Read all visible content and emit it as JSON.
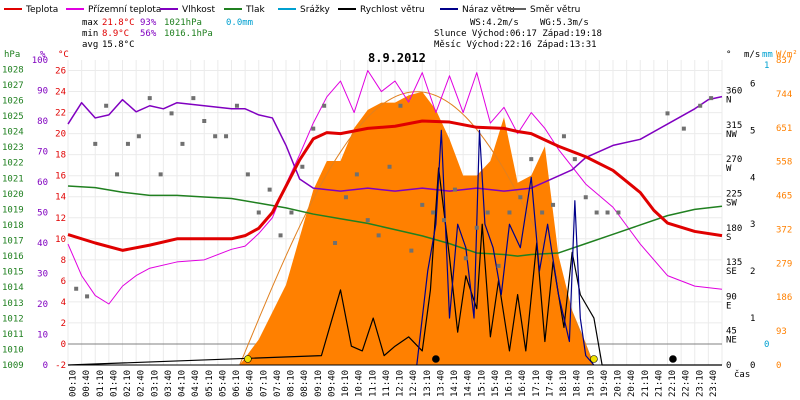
{
  "chart_data": {
    "type": "line",
    "title": "8.9.2012",
    "legend": [
      {
        "key": "teplota",
        "label": "Teplota",
        "color": "#e00000"
      },
      {
        "key": "pocit",
        "label": "Přízemní teplota",
        "color": "#e000e0"
      },
      {
        "key": "vlhkost",
        "label": "Vlhkost",
        "color": "#8000c0"
      },
      {
        "key": "tlak",
        "label": "Tlak",
        "color": "#208020"
      },
      {
        "key": "srazky",
        "label": "Srážky",
        "color": "#00a0d0"
      },
      {
        "key": "rychlost",
        "label": "Rychlost větru",
        "color": "#000000"
      },
      {
        "key": "naraz",
        "label": "Náraz větru",
        "color": "#00008a"
      },
      {
        "key": "smer",
        "label": "Směr větru",
        "color": "#606060"
      }
    ],
    "stats": {
      "max_label": "max",
      "max_temp": "21.8°C",
      "max_hum": "93%",
      "max_press": "1021hPa",
      "max_rain": "0.0mm",
      "min_label": "min",
      "min_temp": "8.9°C",
      "min_hum": "56%",
      "min_press": "1016.1hPa",
      "avg_label": "avg",
      "avg_temp": "15.8°C",
      "ws": "WS:4.2m/s",
      "wg": "WG:5.3m/s",
      "sun": "Slunce Východ:06:17  Západ:19:18",
      "moon": "Měsíc  Východ:22:16  Západ:13:31"
    },
    "axes": {
      "hpa_unit": "hPa",
      "pct_unit": "%",
      "c_unit": "°C",
      "deg_unit": "°",
      "ms_unit": "m/s",
      "mm_unit": "mm",
      "wm2_unit": "W/m²",
      "x_unit": "čas",
      "hpa_ticks": [
        "1028",
        "1027",
        "1026",
        "1025",
        "1024",
        "1023",
        "1022",
        "1021",
        "1020",
        "1019",
        "1018",
        "1017",
        "1016",
        "1015",
        "1014",
        "1013",
        "1012",
        "1011",
        "1010",
        "1009"
      ],
      "pct_ticks": [
        "100",
        "90",
        "80",
        "70",
        "60",
        "50",
        "40",
        "30",
        "20",
        "10",
        "0"
      ],
      "c_ticks": [
        "26",
        "24",
        "22",
        "20",
        "18",
        "16",
        "14",
        "12",
        "10",
        "8",
        "6",
        "4",
        "2",
        "0",
        "-2"
      ],
      "dir_ticks": [
        [
          "360",
          "N"
        ],
        [
          "315",
          "NW"
        ],
        [
          "270",
          "W"
        ],
        [
          "225",
          "SW"
        ],
        [
          "180",
          "S"
        ],
        [
          "135",
          "SE"
        ],
        [
          "90",
          "E"
        ],
        [
          "45",
          "NE"
        ],
        [
          "0",
          ""
        ]
      ],
      "ms_ticks": [
        "6",
        "5",
        "4",
        "3",
        "2",
        "1",
        "0"
      ],
      "mm_ticks": [
        "1",
        "0"
      ],
      "rad_ticks": [
        "837",
        "744",
        "651",
        "558",
        "465",
        "372",
        "279",
        "186",
        "93",
        "0"
      ],
      "x_ticks": [
        "00:10",
        "00:40",
        "01:10",
        "01:40",
        "02:10",
        "02:40",
        "03:10",
        "03:40",
        "04:10",
        "04:40",
        "05:10",
        "05:40",
        "06:10",
        "06:40",
        "07:10",
        "07:40",
        "08:10",
        "08:40",
        "09:10",
        "09:40",
        "10:10",
        "10:40",
        "11:10",
        "11:40",
        "12:10",
        "12:40",
        "13:10",
        "13:40",
        "14:10",
        "14:40",
        "15:10",
        "15:40",
        "16:10",
        "16:40",
        "17:10",
        "17:40",
        "18:10",
        "18:40",
        "19:10",
        "19:40",
        "20:10",
        "20:40",
        "21:10",
        "21:40",
        "22:10",
        "22:40",
        "23:10",
        "23:40"
      ],
      "temp_range": [
        -2,
        27
      ],
      "hum_range": [
        0,
        100
      ],
      "press_range": [
        1009,
        1028.6
      ],
      "wind_range": [
        0,
        6.5
      ],
      "rad_range": [
        0,
        837
      ]
    },
    "series": {
      "teplota": {
        "h": [
          0,
          1,
          2,
          3,
          4,
          5,
          6,
          6.5,
          7,
          7.5,
          8,
          8.5,
          9,
          9.5,
          10,
          11,
          12,
          13,
          14,
          15,
          16,
          16.5,
          17,
          18,
          19,
          20,
          21,
          21.5,
          22,
          23,
          24
        ],
        "v": [
          10.4,
          9.6,
          8.9,
          9.4,
          10,
          10,
          10,
          10.3,
          11,
          12.5,
          15,
          17.5,
          19.5,
          20.1,
          20,
          20.5,
          20.7,
          21.2,
          21.1,
          20.6,
          20.5,
          20.2,
          20,
          18.8,
          17.8,
          16.5,
          14.4,
          12.7,
          11.5,
          10.7,
          10.3
        ]
      },
      "pocit": {
        "h": [
          0,
          0.5,
          1,
          1.5,
          2,
          2.5,
          3,
          4,
          5,
          6,
          6.5,
          7,
          7.5,
          8,
          8.5,
          9,
          9.5,
          10,
          10.5,
          11,
          11.5,
          12,
          12.5,
          13,
          13.5,
          14,
          14.5,
          15,
          15.5,
          16,
          16.5,
          17,
          17.5,
          18,
          19,
          20,
          21,
          22,
          23,
          24
        ],
        "v": [
          9.5,
          6.5,
          4.6,
          3.8,
          5.5,
          6.5,
          7.2,
          7.8,
          8,
          9,
          9.3,
          10.5,
          12,
          15.2,
          18,
          21,
          23.5,
          25,
          22,
          26,
          24,
          25,
          23,
          25.8,
          22,
          25.5,
          22,
          25.8,
          21,
          22.5,
          20,
          22,
          20.5,
          18.5,
          15.2,
          13,
          9.5,
          6.5,
          5.5,
          5.2
        ]
      },
      "vlhkost": {
        "h": [
          0,
          0.5,
          1,
          1.5,
          2,
          2.5,
          3,
          3.5,
          4,
          5,
          6,
          6.5,
          7,
          7.5,
          8,
          8.5,
          9,
          10,
          11,
          12,
          13,
          14,
          15,
          16,
          17,
          18,
          18.5,
          19,
          20,
          21,
          22,
          23,
          23.5,
          24
        ],
        "v": [
          79,
          86,
          81,
          82,
          87,
          83,
          85,
          84,
          86,
          85,
          84,
          84,
          82,
          81,
          72,
          61,
          58,
          57,
          58,
          57,
          58,
          57,
          58,
          57,
          58,
          62,
          64,
          68,
          72,
          74,
          79,
          84,
          87,
          88
        ]
      },
      "tlak": {
        "h": [
          0,
          1,
          2,
          3,
          4,
          5,
          6,
          7,
          8,
          9,
          10,
          11,
          12,
          13,
          14,
          15,
          16,
          16.5,
          17,
          18,
          19,
          20,
          21,
          22,
          23,
          24
        ],
        "v": [
          1020.5,
          1020.4,
          1020.1,
          1019.9,
          1019.9,
          1019.8,
          1019.7,
          1019.4,
          1019.1,
          1018.7,
          1018.4,
          1018.1,
          1017.7,
          1017.3,
          1016.8,
          1016.2,
          1016.1,
          1016.0,
          1016.1,
          1016.2,
          1016.8,
          1017.4,
          1018,
          1018.6,
          1019,
          1019.2
        ]
      },
      "radiace": {
        "h": [
          6.3,
          7,
          8,
          9,
          9.5,
          10,
          10.5,
          11,
          11.5,
          12,
          12.5,
          13,
          13.5,
          14,
          14.5,
          15,
          15.5,
          16,
          16.5,
          17,
          17.5,
          18,
          18.5,
          19,
          19.3
        ],
        "v": [
          0,
          70,
          220,
          480,
          560,
          560,
          650,
          700,
          720,
          720,
          740,
          750,
          700,
          620,
          520,
          520,
          560,
          680,
          500,
          520,
          600,
          300,
          150,
          60,
          0
        ]
      },
      "rychlost": {
        "h": [
          0,
          9.3,
          9.6,
          10,
          10.4,
          10.8,
          11.2,
          11.6,
          12,
          12.5,
          13,
          13.3,
          13.6,
          14,
          14.3,
          14.6,
          15,
          15.2,
          15.5,
          15.8,
          16.2,
          16.5,
          16.8,
          17.2,
          17.5,
          17.8,
          18.2,
          18.5,
          18.8,
          19.3,
          19.6,
          24
        ],
        "v": [
          0,
          0.2,
          0.8,
          1.6,
          0.4,
          0.3,
          1,
          0.2,
          0.4,
          0.6,
          0.3,
          1.6,
          4.2,
          2.3,
          0.7,
          1.9,
          1.2,
          3,
          0.6,
          1.8,
          0.3,
          1.5,
          0.3,
          2.6,
          0.5,
          2.2,
          0.8,
          2.4,
          1.5,
          1,
          0,
          0
        ]
      },
      "naraz": {
        "h": [
          12.8,
          13.2,
          13.5,
          13.7,
          14,
          14.3,
          14.6,
          14.9,
          15.1,
          15.3,
          15.6,
          15.9,
          16.2,
          16.6,
          17,
          17.3,
          17.6,
          18,
          18.4,
          18.6,
          18.8,
          19,
          19.3
        ],
        "v": [
          0,
          2,
          3,
          5,
          1,
          3,
          2.5,
          1,
          5,
          3,
          2.5,
          1.5,
          3,
          2.5,
          4,
          2,
          3,
          1.5,
          0.5,
          3.5,
          1,
          0.2,
          0
        ]
      },
      "smer": {
        "h": [
          0.3,
          0.7,
          1,
          1.4,
          1.8,
          2.2,
          2.6,
          3,
          3.4,
          3.8,
          4.2,
          4.6,
          5,
          5.4,
          5.8,
          6.2,
          6.6,
          7,
          7.4,
          7.8,
          8.2,
          8.6,
          9,
          9.4,
          9.8,
          10.2,
          10.6,
          11,
          11.4,
          11.8,
          12.2,
          12.6,
          13,
          13.4,
          13.8,
          14.2,
          14.6,
          15,
          15.4,
          15.8,
          16.2,
          16.6,
          17,
          17.4,
          17.8,
          18.2,
          18.6,
          19,
          19.4,
          19.8,
          20.2,
          22,
          22.6,
          23.2,
          23.6
        ],
        "v": [
          100,
          90,
          290,
          340,
          250,
          290,
          300,
          350,
          250,
          330,
          290,
          350,
          320,
          300,
          300,
          340,
          250,
          200,
          230,
          170,
          200,
          260,
          310,
          340,
          160,
          220,
          250,
          190,
          170,
          260,
          340,
          150,
          210,
          200,
          190,
          230,
          140,
          180,
          200,
          130,
          200,
          220,
          270,
          200,
          210,
          300,
          270,
          220,
          200,
          200,
          200,
          330,
          310,
          340,
          350
        ]
      },
      "markers": [
        {
          "h": 6.6,
          "kind": "sunrise",
          "color": "#f0e000"
        },
        {
          "h": 19.3,
          "kind": "sunset",
          "color": "#f0e000"
        },
        {
          "h": 13.5,
          "kind": "moonset",
          "color": "#000000"
        },
        {
          "h": 22.2,
          "kind": "moonrise",
          "color": "#000000"
        }
      ]
    }
  }
}
